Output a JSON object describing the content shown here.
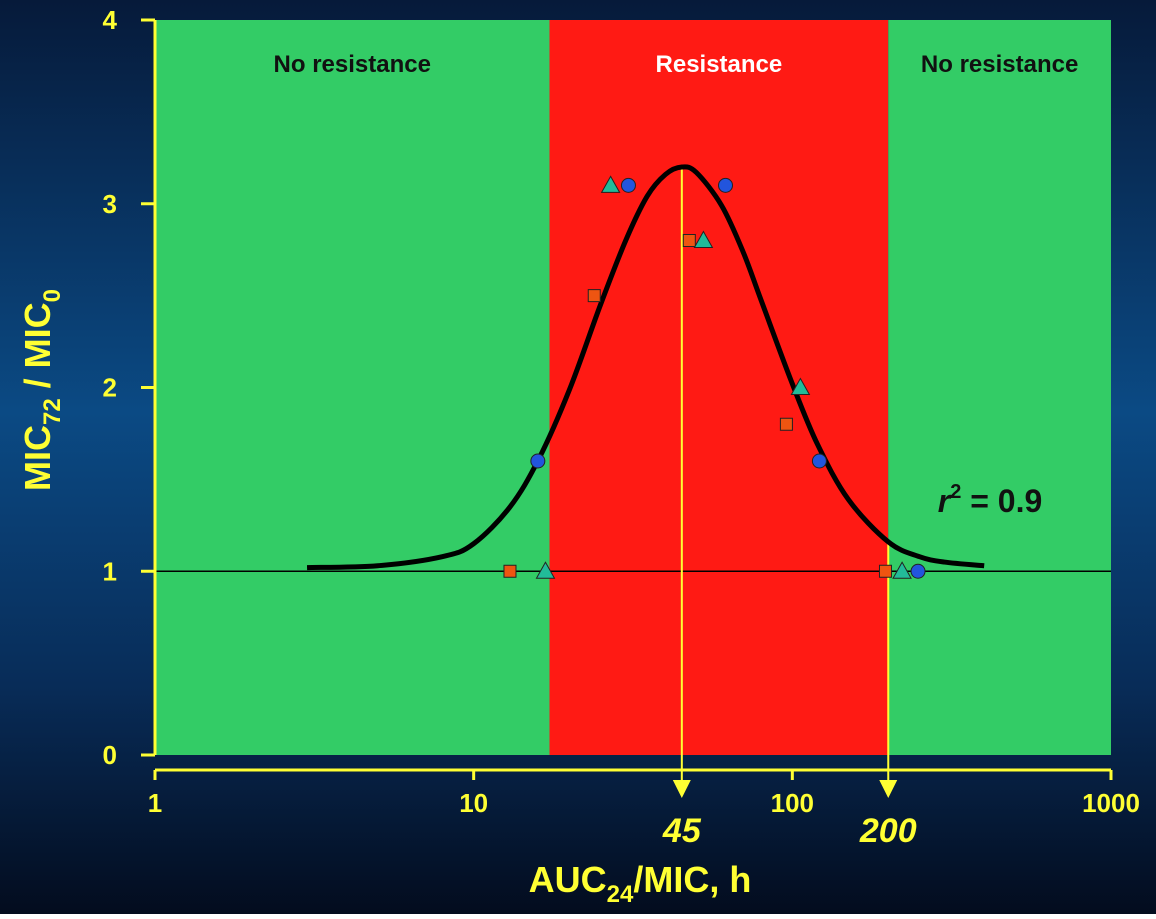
{
  "chart_data": {
    "type": "scatter",
    "xlabel": [
      "AUC",
      "24",
      "/MIC, h"
    ],
    "ylabel": [
      "MIC",
      "72",
      " / MIC",
      "0"
    ],
    "annotation": [
      "r",
      "2",
      " = 0.9"
    ],
    "xscale": "log",
    "xlim": [
      1,
      1000
    ],
    "xticks": [
      1,
      10,
      100,
      1000
    ],
    "ylim": [
      0,
      4
    ],
    "yticks": [
      0,
      1,
      2,
      3,
      4
    ],
    "hline": 1,
    "markers": [
      45,
      200
    ],
    "regions": [
      {
        "label": "No resistance",
        "x": [
          1,
          17.3
        ],
        "color": "#33cc66",
        "text_color": "#111111"
      },
      {
        "label": "Resistance",
        "x": [
          17.3,
          200
        ],
        "color": "#ff1a14",
        "text_color": "#ffffff"
      },
      {
        "label": "No resistance",
        "x": [
          200,
          1000
        ],
        "color": "#33cc66",
        "text_color": "#111111"
      }
    ],
    "series": [
      {
        "type": "line",
        "color": "#000000",
        "x": [
          3,
          5,
          8,
          10,
          13,
          16,
          20,
          25,
          30,
          35,
          40,
          45,
          50,
          60,
          70,
          80,
          100,
          120,
          150,
          200,
          250,
          300,
          400
        ],
        "values": [
          1.02,
          1.03,
          1.08,
          1.15,
          1.35,
          1.61,
          1.99,
          2.45,
          2.8,
          3.04,
          3.16,
          3.2,
          3.17,
          2.99,
          2.74,
          2.47,
          2.02,
          1.69,
          1.39,
          1.16,
          1.08,
          1.05,
          1.03
        ]
      },
      {
        "type": "scatter",
        "marker": "circle",
        "color": "#2255dd",
        "x": [
          15.9,
          30.6,
          61.7,
          121.6,
          248
        ],
        "values": [
          1.6,
          3.1,
          3.1,
          1.6,
          1.0
        ]
      },
      {
        "type": "scatter",
        "marker": "square",
        "color": "#ee5511",
        "x": [
          13,
          23.9,
          47.5,
          95.8,
          196
        ],
        "values": [
          1.0,
          2.5,
          2.8,
          1.8,
          1.0
        ]
      },
      {
        "type": "scatter",
        "marker": "triangle",
        "color": "#22bb99",
        "x": [
          16.8,
          26.9,
          52.6,
          106,
          221
        ],
        "values": [
          1.0,
          3.1,
          2.8,
          2.0,
          1.0
        ]
      }
    ]
  }
}
